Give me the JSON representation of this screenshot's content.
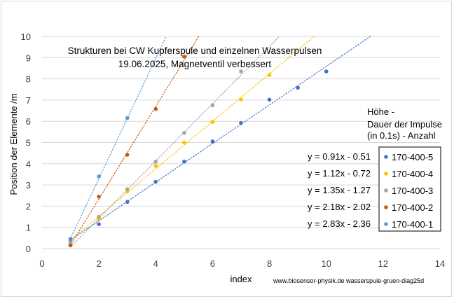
{
  "chart_data": {
    "type": "scatter",
    "title_lines": [
      "Strukturen bei CW Kupferspule und einzelnen Wasserpulsen",
      "19.06.2025, Magnetventil verbessert"
    ],
    "xlabel": "index",
    "ylabel": "Position der Elemente /m",
    "xlim": [
      0,
      14
    ],
    "ylim": [
      0,
      10
    ],
    "xticks": [
      "0",
      "2",
      "4",
      "6",
      "8",
      "10",
      "12",
      "14"
    ],
    "yticks": [
      "0",
      "1",
      "2",
      "3",
      "4",
      "5",
      "6",
      "7",
      "8",
      "9",
      "10"
    ],
    "grid": "horizontal",
    "legend_heading": [
      "Höhe -",
      "Dauer der Impulse",
      "(in 0.1s) -  Anzahl"
    ],
    "legend_position": "right",
    "trendlines": "dotted linear",
    "series": [
      {
        "name": "170-400-5",
        "color": "#4472c4",
        "equation": "y = 0.91x - 0.51",
        "slope": 0.91,
        "intercept": -0.51,
        "x": [
          1,
          2,
          3,
          4,
          5,
          6,
          7,
          8,
          9,
          10
        ],
        "y": [
          0.45,
          1.15,
          2.2,
          3.15,
          4.1,
          5.05,
          5.92,
          7.02,
          7.58,
          8.35
        ]
      },
      {
        "name": "170-400-4",
        "color": "#ffc000",
        "equation": "y = 1.12x - 0.72",
        "slope": 1.12,
        "intercept": -0.72,
        "x": [
          1,
          2,
          3,
          4,
          5,
          6,
          7,
          8
        ],
        "y": [
          0.3,
          1.4,
          2.7,
          3.9,
          5.0,
          5.97,
          7.03,
          8.18
        ]
      },
      {
        "name": "170-400-3",
        "color": "#a5a5a5",
        "equation": "y = 1.35x - 1.27",
        "slope": 1.35,
        "intercept": -1.27,
        "x": [
          1,
          2,
          3,
          4,
          5,
          6,
          7
        ],
        "y": [
          0.2,
          1.5,
          2.8,
          4.1,
          5.45,
          6.75,
          8.35
        ]
      },
      {
        "name": "170-400-2",
        "color": "#c55a11",
        "equation": "y = 2.18x - 2.02",
        "slope": 2.18,
        "intercept": -2.02,
        "x": [
          1,
          2,
          3,
          4,
          5
        ],
        "y": [
          0.15,
          2.45,
          4.42,
          6.58,
          9.05
        ]
      },
      {
        "name": "170-400-1",
        "color": "#5b9bd5",
        "equation": "y = 2.83x - 2.36",
        "slope": 2.83,
        "intercept": -2.36,
        "x": [
          1,
          2,
          3
        ],
        "y": [
          0.38,
          3.4,
          6.15
        ]
      }
    ],
    "footer": "www.biosensor-physik.de  wasserspule-gruen-diag25d"
  }
}
